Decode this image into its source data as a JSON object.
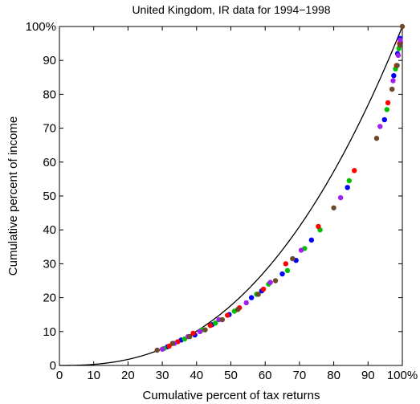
{
  "chart_data": {
    "type": "scatter",
    "title": "United Kingdom, IR data for 1994−1998",
    "xlabel": "Cumulative percent of tax returns",
    "ylabel": "Cumulative percent of income",
    "xlim": [
      0,
      100
    ],
    "ylim": [
      0,
      100
    ],
    "grid": false,
    "legend": "none",
    "x_ticks": [
      0,
      10,
      20,
      30,
      40,
      50,
      60,
      70,
      80,
      90,
      100
    ],
    "x_tick_labels": [
      "0",
      "10",
      "20",
      "30",
      "40",
      "50",
      "60",
      "70",
      "80",
      "90",
      "100%"
    ],
    "y_ticks": [
      0,
      10,
      20,
      30,
      40,
      50,
      60,
      70,
      80,
      90,
      100
    ],
    "y_tick_labels": [
      "0",
      "10",
      "20",
      "30",
      "40",
      "50",
      "60",
      "70",
      "80",
      "90",
      "100%"
    ],
    "series": [
      {
        "color": "#0000ff",
        "points": [
          [
            31.5,
            5.5
          ],
          [
            35.5,
            7.5
          ],
          [
            39.5,
            9.0
          ],
          [
            44.5,
            12.0
          ],
          [
            49.5,
            15.0
          ],
          [
            56.0,
            20.0
          ],
          [
            59.0,
            22.0
          ],
          [
            65.0,
            27.0
          ],
          [
            69.0,
            31.0
          ],
          [
            73.5,
            37.0
          ],
          [
            84.0,
            52.5
          ],
          [
            94.8,
            72.5
          ],
          [
            97.5,
            85.5
          ],
          [
            98.6,
            92.0
          ],
          [
            99.3,
            96.5
          ]
        ]
      },
      {
        "color": "#00c000",
        "points": [
          [
            30.5,
            5.0
          ],
          [
            36.5,
            7.8
          ],
          [
            41.5,
            10.5
          ],
          [
            45.5,
            12.5
          ],
          [
            51.0,
            16.0
          ],
          [
            57.5,
            21.0
          ],
          [
            61.0,
            24.0
          ],
          [
            66.5,
            28.0
          ],
          [
            71.5,
            34.5
          ],
          [
            76.0,
            40.0
          ],
          [
            84.5,
            54.5
          ],
          [
            95.5,
            75.5
          ],
          [
            98.0,
            87.5
          ],
          [
            99.0,
            93.5
          ]
        ]
      },
      {
        "color": "#ff0000",
        "points": [
          [
            32.0,
            5.7
          ],
          [
            34.5,
            7.0
          ],
          [
            39.0,
            9.5
          ],
          [
            44.0,
            11.8
          ],
          [
            49.0,
            14.8
          ],
          [
            52.5,
            17.0
          ],
          [
            59.5,
            22.5
          ],
          [
            66.0,
            30.0
          ],
          [
            75.5,
            41.0
          ],
          [
            86.0,
            57.5
          ],
          [
            95.8,
            77.5
          ],
          [
            98.3,
            88.5
          ],
          [
            99.2,
            95.0
          ]
        ]
      },
      {
        "color": "#a020f0",
        "points": [
          [
            30.0,
            4.8
          ],
          [
            33.5,
            6.5
          ],
          [
            37.5,
            8.5
          ],
          [
            41.0,
            10.0
          ],
          [
            46.5,
            13.5
          ],
          [
            54.5,
            18.5
          ],
          [
            61.5,
            24.5
          ],
          [
            70.5,
            34.0
          ],
          [
            82.0,
            49.5
          ],
          [
            93.5,
            70.5
          ],
          [
            97.3,
            84.0
          ],
          [
            98.8,
            91.5
          ],
          [
            99.4,
            96.0
          ]
        ]
      },
      {
        "color": "#6b4a2a",
        "points": [
          [
            28.5,
            4.5
          ],
          [
            33.0,
            6.5
          ],
          [
            38.0,
            8.5
          ],
          [
            42.5,
            10.5
          ],
          [
            47.5,
            13.5
          ],
          [
            52.0,
            16.5
          ],
          [
            58.0,
            21.0
          ],
          [
            63.0,
            25.0
          ],
          [
            68.0,
            31.5
          ],
          [
            80.0,
            46.5
          ],
          [
            92.5,
            67.0
          ],
          [
            97.0,
            81.5
          ],
          [
            98.5,
            88.5
          ],
          [
            99.3,
            94.5
          ],
          [
            100.0,
            100.0
          ]
        ]
      }
    ],
    "reference_curve": {
      "type": "line",
      "color": "#000000",
      "exponent": 2.5,
      "description_from_figure": ""
    }
  }
}
